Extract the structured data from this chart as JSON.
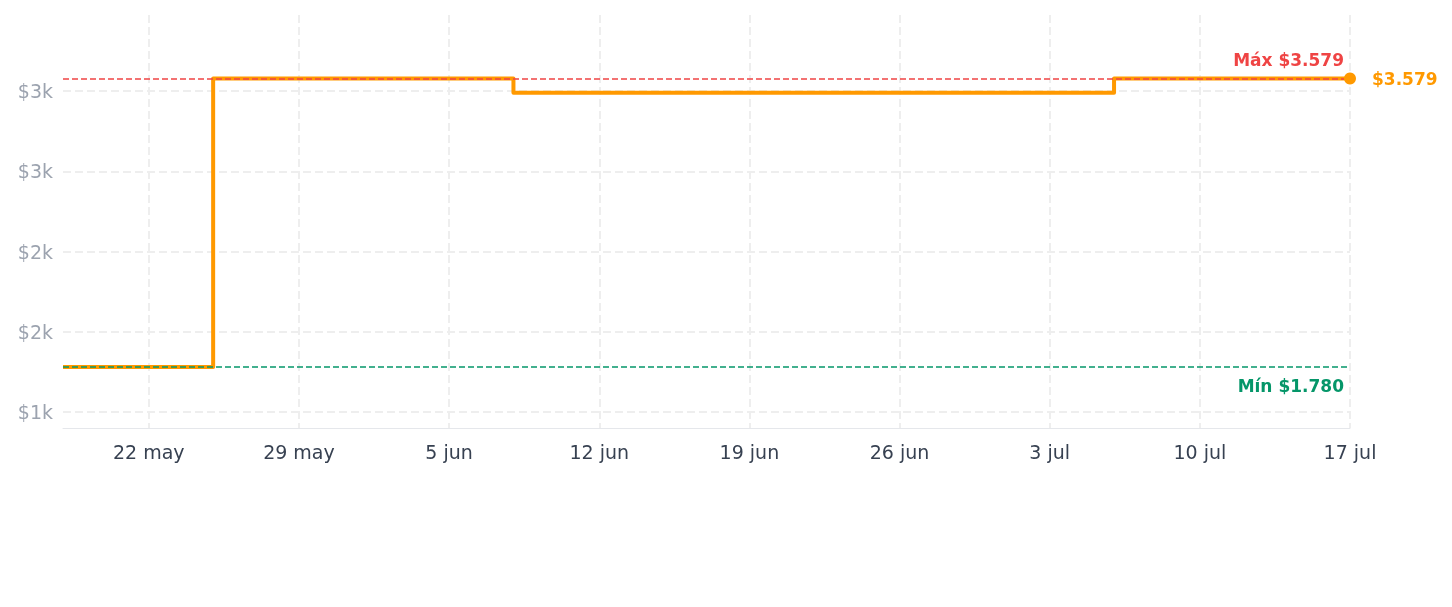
{
  "chart_data": {
    "type": "step",
    "x": [
      "--05-18",
      "--05-25",
      "--06-08",
      "--07-06",
      "--07-17"
    ],
    "series": [
      {
        "color": "#ff9900",
        "values": [
          1780,
          3579,
          3490,
          3579,
          3579
        ]
      }
    ],
    "xlim": [
      "--05-18",
      "--07-17"
    ],
    "xticks": [
      {
        "value": "--05-22",
        "label": "22 may"
      },
      {
        "value": "--05-29",
        "label": "29 may"
      },
      {
        "value": "--06-05",
        "label": "5 jun"
      },
      {
        "value": "--06-12",
        "label": "12 jun"
      },
      {
        "value": "--06-19",
        "label": "19 jun"
      },
      {
        "value": "--06-26",
        "label": "26 jun"
      },
      {
        "value": "--07-03",
        "label": "3 jul"
      },
      {
        "value": "--07-10",
        "label": "10 jul"
      },
      {
        "value": "--07-17",
        "label": "17 jul"
      }
    ],
    "ylim": [
      1400,
      3975
    ],
    "yticks": [
      {
        "value": 1500,
        "label": "$1k"
      },
      {
        "value": 2000,
        "label": "$2k"
      },
      {
        "value": 2500,
        "label": "$2k"
      },
      {
        "value": 3000,
        "label": "$3k"
      },
      {
        "value": 3500,
        "label": "$3k"
      }
    ],
    "ref_lines": [
      {
        "axis": "y",
        "value": 3579,
        "label": "Máx $3.579",
        "color": "#ef4444",
        "line_style": "dashed"
      },
      {
        "axis": "y",
        "value": 1780,
        "label": "Mín $1.780",
        "color": "#059669",
        "line_style": "dashed"
      }
    ],
    "annotations": [
      {
        "text": "$3.579",
        "x": "--07-17",
        "y": 3579
      }
    ],
    "grid": true,
    "line_style": "solid"
  }
}
